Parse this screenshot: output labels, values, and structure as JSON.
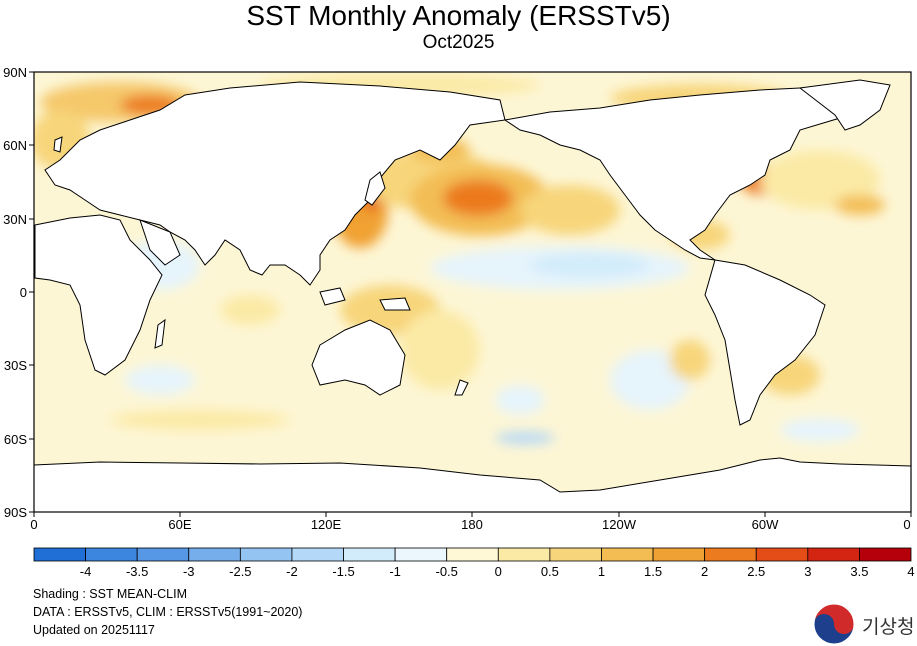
{
  "title": "SST Monthly Anomaly (ERSSTv5)",
  "subtitle": "Oct2025",
  "map": {
    "y_ticks": [
      "90N",
      "60N",
      "30N",
      "0",
      "30S",
      "60S",
      "90S"
    ],
    "x_ticks": [
      "0",
      "60E",
      "120E",
      "180",
      "120W",
      "60W",
      "0"
    ]
  },
  "colorbar": {
    "labels": [
      "-4",
      "-3.5",
      "-3",
      "-2.5",
      "-2",
      "-1.5",
      "-1",
      "-0.5",
      "0",
      "0.5",
      "1",
      "1.5",
      "2",
      "2.5",
      "3",
      "3.5",
      "4"
    ],
    "colors": [
      "#1f6fd6",
      "#3d86e0",
      "#5698e6",
      "#76aeec",
      "#94c4f2",
      "#b4d8f7",
      "#d2ecfb",
      "#ebf7fd",
      "#fef8d6",
      "#fbeaa6",
      "#f7d57a",
      "#f3bd54",
      "#f0a133",
      "#ec7a1f",
      "#e44d17",
      "#d42512",
      "#b5000b"
    ]
  },
  "footer": {
    "shading": "Shading : SST MEAN-CLIM",
    "data": "DATA : ERSSTv5, CLIM : ERSSTv5(1991~2020)",
    "updated": "Updated on 20251117"
  },
  "logo": {
    "text": "기상청"
  }
}
